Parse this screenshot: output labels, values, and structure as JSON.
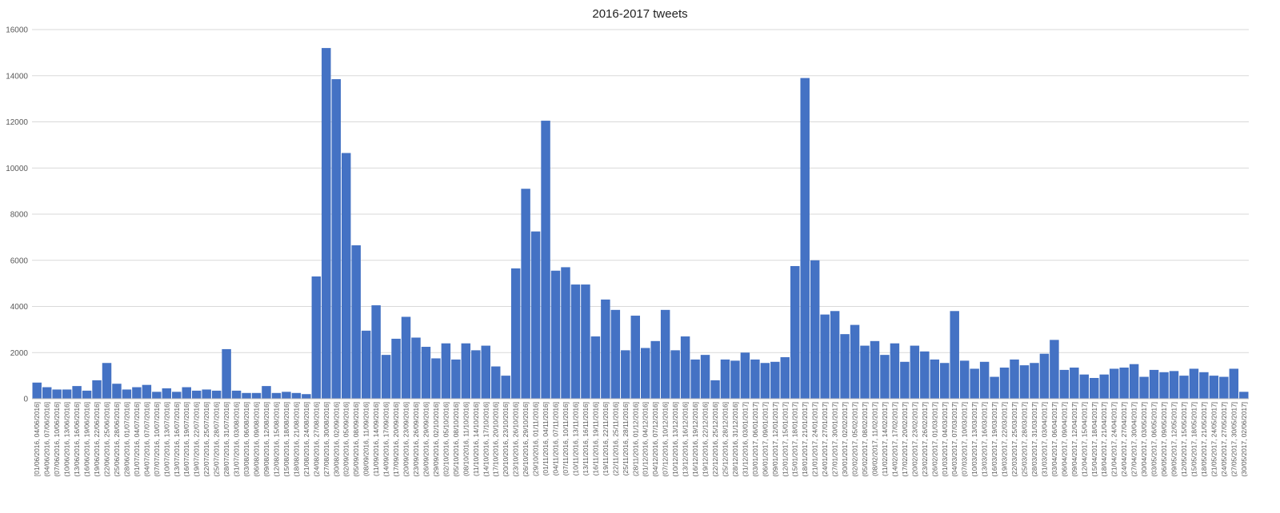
{
  "chart_data": {
    "type": "bar",
    "title": "2016-2017 tweets",
    "xlabel": "",
    "ylabel": "",
    "ylim": [
      0,
      16000
    ],
    "yticks": [
      0,
      2000,
      4000,
      6000,
      8000,
      10000,
      12000,
      14000,
      16000
    ],
    "grid": true,
    "legend": "none",
    "bar_color": "#4472C4",
    "categories": [
      "[01/06/2016, 04/06/2016]",
      "(04/06/2016, 07/06/2016]",
      "(07/06/2016, 10/06/2016]",
      "(10/06/2016, 13/06/2016]",
      "(13/06/2016, 16/06/2016]",
      "(16/06/2016, 19/06/2016]",
      "(19/06/2016, 22/06/2016]",
      "(22/06/2016, 25/06/2016]",
      "(25/06/2016, 28/06/2016]",
      "(28/06/2016, 01/07/2016]",
      "(01/07/2016, 04/07/2016]",
      "(04/07/2016, 07/07/2016]",
      "(07/07/2016, 10/07/2016]",
      "(10/07/2016, 13/07/2016]",
      "(13/07/2016, 16/07/2016]",
      "(16/07/2016, 19/07/2016]",
      "(19/07/2016, 22/07/2016]",
      "(22/07/2016, 25/07/2016]",
      "(25/07/2016, 28/07/2016]",
      "(28/07/2016, 31/07/2016]",
      "(31/07/2016, 03/08/2016]",
      "(03/08/2016, 06/08/2016]",
      "(06/08/2016, 09/08/2016]",
      "(09/08/2016, 12/08/2016]",
      "(12/08/2016, 15/08/2016]",
      "(15/08/2016, 18/08/2016]",
      "(18/08/2016, 21/08/2016]",
      "(21/08/2016, 24/08/2016]",
      "(24/08/2016, 27/08/2016]",
      "(27/08/2016, 30/08/2016]",
      "(30/08/2016, 02/09/2016]",
      "(02/09/2016, 05/09/2016]",
      "(05/09/2016, 08/09/2016]",
      "(08/09/2016, 11/09/2016]",
      "(11/09/2016, 14/09/2016]",
      "(14/09/2016, 17/09/2016]",
      "(17/09/2016, 20/09/2016]",
      "(20/09/2016, 23/09/2016]",
      "(23/09/2016, 26/09/2016]",
      "(26/09/2016, 29/09/2016]",
      "(29/09/2016, 02/10/2016]",
      "(02/10/2016, 05/10/2016]",
      "(05/10/2016, 08/10/2016]",
      "(08/10/2016, 11/10/2016]",
      "(11/10/2016, 14/10/2016]",
      "(14/10/2016, 17/10/2016]",
      "(17/10/2016, 20/10/2016]",
      "(20/10/2016, 23/10/2016]",
      "(23/10/2016, 26/10/2016]",
      "(26/10/2016, 29/10/2016]",
      "(29/10/2016, 01/11/2016]",
      "(01/11/2016, 04/11/2016]",
      "(04/11/2016, 07/11/2016]",
      "(07/11/2016, 10/11/2016]",
      "(10/11/2016, 13/11/2016]",
      "(13/11/2016, 16/11/2016]",
      "(16/11/2016, 19/11/2016]",
      "(19/11/2016, 22/11/2016]",
      "(22/11/2016, 25/11/2016]",
      "(25/11/2016, 28/11/2016]",
      "(28/11/2016, 01/12/2016]",
      "(01/12/2016, 04/12/2016]",
      "(04/12/2016, 07/12/2016]",
      "(07/12/2016, 10/12/2016]",
      "(10/12/2016, 13/12/2016]",
      "(13/12/2016, 16/12/2016]",
      "(16/12/2016, 19/12/2016]",
      "(19/12/2016, 22/12/2016]",
      "(22/12/2016, 25/12/2016]",
      "(25/12/2016, 28/12/2016]",
      "(28/12/2016, 31/12/2016]",
      "(31/12/2016, 03/01/2017]",
      "(03/01/2017, 06/01/2017]",
      "(06/01/2017, 09/01/2017]",
      "(09/01/2017, 12/01/2017]",
      "(12/01/2017, 15/01/2017]",
      "(15/01/2017, 18/01/2017]",
      "(18/01/2017, 21/01/2017]",
      "(21/01/2017, 24/01/2017]",
      "(24/01/2017, 27/01/2017]",
      "(27/01/2017, 30/01/2017]",
      "(30/01/2017, 02/02/2017]",
      "(02/02/2017, 05/02/2017]",
      "(05/02/2017, 08/02/2017]",
      "(08/02/2017, 11/02/2017]",
      "(11/02/2017, 14/02/2017]",
      "(14/02/2017, 17/02/2017]",
      "(17/02/2017, 20/02/2017]",
      "(20/02/2017, 23/02/2017]",
      "(23/02/2017, 26/02/2017]",
      "(26/02/2017, 01/03/2017]",
      "(01/03/2017, 04/03/2017]",
      "(04/03/2017, 07/03/2017]",
      "(07/03/2017, 10/03/2017]",
      "(10/03/2017, 13/03/2017]",
      "(13/03/2017, 16/03/2017]",
      "(16/03/2017, 19/03/2017]",
      "(19/03/2017, 22/03/2017]",
      "(22/03/2017, 25/03/2017]",
      "(25/03/2017, 28/03/2017]",
      "(28/03/2017, 31/03/2017]",
      "(31/03/2017, 03/04/2017]",
      "(03/04/2017, 06/04/2017]",
      "(06/04/2017, 09/04/2017]",
      "(09/04/2017, 12/04/2017]",
      "(12/04/2017, 15/04/2017]",
      "(15/04/2017, 18/04/2017]",
      "(18/04/2017, 21/04/2017]",
      "(21/04/2017, 24/04/2017]",
      "(24/04/2017, 27/04/2017]",
      "(27/04/2017, 30/04/2017]",
      "(30/04/2017, 03/05/2017]",
      "(03/05/2017, 06/05/2017]",
      "(06/05/2017, 09/05/2017]",
      "(09/05/2017, 12/05/2017]",
      "(12/05/2017, 15/05/2017]",
      "(15/05/2017, 18/05/2017]",
      "(18/05/2017, 21/05/2017]",
      "(21/05/2017, 24/05/2017]",
      "(24/05/2017, 27/05/2017]",
      "(27/05/2017, 30/05/2017]",
      "(30/05/2017, 02/06/2017]"
    ],
    "values": [
      700,
      500,
      400,
      400,
      550,
      350,
      800,
      1550,
      650,
      400,
      500,
      600,
      300,
      450,
      300,
      500,
      350,
      400,
      350,
      2150,
      350,
      250,
      250,
      550,
      250,
      300,
      250,
      200,
      5300,
      15200,
      13850,
      10650,
      6650,
      2950,
      4050,
      1900,
      2600,
      3550,
      2650,
      2250,
      1750,
      2400,
      1700,
      2400,
      2100,
      2300,
      1400,
      1000,
      5650,
      9100,
      7250,
      12050,
      5550,
      5700,
      4950,
      4950,
      2700,
      4300,
      3850,
      2100,
      3600,
      2200,
      2500,
      3850,
      2100,
      2700,
      1700,
      1900,
      800,
      1700,
      1650,
      2000,
      1700,
      1550,
      1600,
      1800,
      5750,
      13900,
      6000,
      3650,
      3800,
      2800,
      3200,
      2300,
      2500,
      1900,
      2400,
      1600,
      2300,
      2050,
      1700,
      1550,
      3800,
      1650,
      1300,
      1600,
      950,
      1350,
      1700,
      1450,
      1550,
      1950,
      2550,
      1250,
      1350,
      1050,
      900,
      1050,
      1300,
      1350,
      1500,
      950,
      1250,
      1150,
      1200,
      1000,
      1300,
      1150,
      1000,
      950,
      1300,
      300
    ]
  }
}
